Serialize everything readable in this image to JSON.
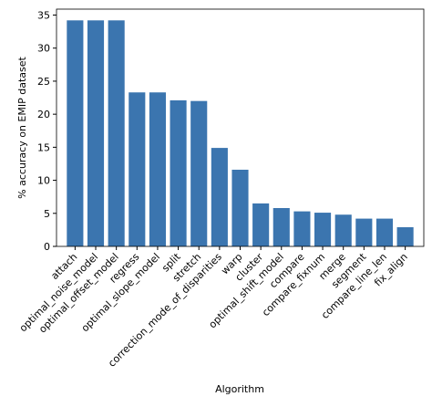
{
  "chart_data": {
    "type": "bar",
    "categories": [
      "attach",
      "optimal_noise_model",
      "optimal_offset_model",
      "regress",
      "optimal_slope_model",
      "split",
      "stretch",
      "correction_mode_of_disparities",
      "warp",
      "cluster",
      "optimal_shift_model",
      "compare",
      "compare_fixnum",
      "merge",
      "segment",
      "compare_line_len",
      "fix_align"
    ],
    "values": [
      34.2,
      34.2,
      34.2,
      23.3,
      23.3,
      22.1,
      22.0,
      14.9,
      11.6,
      6.5,
      5.8,
      5.3,
      5.1,
      4.8,
      4.2,
      4.2,
      2.9
    ],
    "color": "#3b75af",
    "xlabel": "Algorithm",
    "ylabel": "% accuracy on EMIP dataset",
    "ylim": [
      0,
      35.9
    ],
    "yticks": [
      0,
      5,
      10,
      15,
      20,
      25,
      30,
      35
    ]
  }
}
